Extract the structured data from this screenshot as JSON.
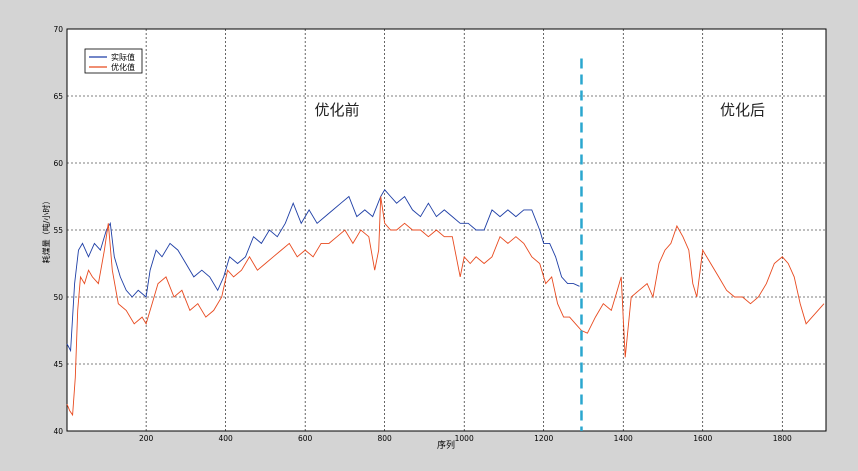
{
  "chart_data": {
    "type": "line",
    "title": "",
    "xlabel": "序列",
    "ylabel": "耗煤量（吨/小时）",
    "xlim": [
      1,
      1910
    ],
    "ylim": [
      40,
      70
    ],
    "xticks": [
      200,
      400,
      600,
      800,
      1000,
      1200,
      1400,
      1600,
      1800
    ],
    "yticks": [
      40,
      45,
      50,
      55,
      60,
      65,
      70
    ],
    "grid": true,
    "legend_position": "top-left",
    "divider": {
      "x": 1295,
      "color": "#2aa7cf",
      "style": "dashed"
    },
    "annotations": [
      {
        "text": "优化前",
        "x": 680,
        "y": 63.6
      },
      {
        "text": "优化后",
        "x": 1700,
        "y": 63.6
      }
    ],
    "series": [
      {
        "name": "实际值",
        "color": "#1f3fa6",
        "points": [
          [
            1,
            46.5
          ],
          [
            10,
            46
          ],
          [
            20,
            51
          ],
          [
            30,
            53.5
          ],
          [
            40,
            54
          ],
          [
            55,
            53
          ],
          [
            70,
            54
          ],
          [
            85,
            53.5
          ],
          [
            100,
            55
          ],
          [
            110,
            55.5
          ],
          [
            120,
            53
          ],
          [
            135,
            51.5
          ],
          [
            150,
            50.5
          ],
          [
            165,
            50
          ],
          [
            180,
            50.5
          ],
          [
            200,
            50
          ],
          [
            210,
            52
          ],
          [
            225,
            53.5
          ],
          [
            240,
            53
          ],
          [
            260,
            54
          ],
          [
            280,
            53.5
          ],
          [
            300,
            52.5
          ],
          [
            320,
            51.5
          ],
          [
            340,
            52
          ],
          [
            360,
            51.5
          ],
          [
            380,
            50.5
          ],
          [
            395,
            51.5
          ],
          [
            410,
            53
          ],
          [
            430,
            52.5
          ],
          [
            450,
            53
          ],
          [
            470,
            54.5
          ],
          [
            490,
            54
          ],
          [
            510,
            55
          ],
          [
            530,
            54.5
          ],
          [
            550,
            55.5
          ],
          [
            570,
            57
          ],
          [
            590,
            55.5
          ],
          [
            610,
            56.5
          ],
          [
            630,
            55.5
          ],
          [
            650,
            56
          ],
          [
            670,
            56.5
          ],
          [
            690,
            57
          ],
          [
            710,
            57.5
          ],
          [
            730,
            56
          ],
          [
            750,
            56.5
          ],
          [
            770,
            56
          ],
          [
            790,
            57.5
          ],
          [
            800,
            58
          ],
          [
            815,
            57.5
          ],
          [
            830,
            57
          ],
          [
            850,
            57.5
          ],
          [
            870,
            56.5
          ],
          [
            890,
            56
          ],
          [
            910,
            57
          ],
          [
            930,
            56
          ],
          [
            950,
            56.5
          ],
          [
            970,
            56
          ],
          [
            990,
            55.5
          ],
          [
            1010,
            55.5
          ],
          [
            1030,
            55
          ],
          [
            1050,
            55
          ],
          [
            1070,
            56.5
          ],
          [
            1090,
            56
          ],
          [
            1110,
            56.5
          ],
          [
            1130,
            56
          ],
          [
            1150,
            56.5
          ],
          [
            1170,
            56.5
          ],
          [
            1190,
            55
          ],
          [
            1200,
            54
          ],
          [
            1215,
            54
          ],
          [
            1230,
            53
          ],
          [
            1245,
            51.5
          ],
          [
            1260,
            51
          ],
          [
            1275,
            51
          ],
          [
            1290,
            50.8
          ]
        ]
      },
      {
        "name": "优化值",
        "color": "#e84a1f",
        "points": [
          [
            1,
            42
          ],
          [
            8,
            41.5
          ],
          [
            15,
            41.2
          ],
          [
            22,
            44
          ],
          [
            28,
            49
          ],
          [
            35,
            51.5
          ],
          [
            45,
            51
          ],
          [
            55,
            52
          ],
          [
            65,
            51.5
          ],
          [
            80,
            51
          ],
          [
            95,
            53.5
          ],
          [
            105,
            55.5
          ],
          [
            115,
            52
          ],
          [
            130,
            49.5
          ],
          [
            150,
            49
          ],
          [
            170,
            48
          ],
          [
            190,
            48.5
          ],
          [
            200,
            48
          ],
          [
            215,
            49.5
          ],
          [
            230,
            51
          ],
          [
            250,
            51.5
          ],
          [
            270,
            50
          ],
          [
            290,
            50.5
          ],
          [
            310,
            49
          ],
          [
            330,
            49.5
          ],
          [
            350,
            48.5
          ],
          [
            370,
            49
          ],
          [
            390,
            50
          ],
          [
            405,
            52
          ],
          [
            420,
            51.5
          ],
          [
            440,
            52
          ],
          [
            460,
            53
          ],
          [
            480,
            52
          ],
          [
            500,
            52.5
          ],
          [
            520,
            53
          ],
          [
            540,
            53.5
          ],
          [
            560,
            54
          ],
          [
            580,
            53
          ],
          [
            600,
            53.5
          ],
          [
            620,
            53
          ],
          [
            640,
            54
          ],
          [
            660,
            54
          ],
          [
            680,
            54.5
          ],
          [
            700,
            55
          ],
          [
            720,
            54
          ],
          [
            740,
            55
          ],
          [
            760,
            54.5
          ],
          [
            775,
            52
          ],
          [
            785,
            53.5
          ],
          [
            790,
            57.5
          ],
          [
            800,
            55.5
          ],
          [
            815,
            55
          ],
          [
            830,
            55
          ],
          [
            850,
            55.5
          ],
          [
            870,
            55
          ],
          [
            890,
            55
          ],
          [
            910,
            54.5
          ],
          [
            930,
            55
          ],
          [
            950,
            54.5
          ],
          [
            970,
            54.5
          ],
          [
            990,
            51.5
          ],
          [
            1000,
            53
          ],
          [
            1015,
            52.5
          ],
          [
            1030,
            53
          ],
          [
            1050,
            52.5
          ],
          [
            1070,
            53
          ],
          [
            1090,
            54.5
          ],
          [
            1110,
            54
          ],
          [
            1130,
            54.5
          ],
          [
            1150,
            54
          ],
          [
            1170,
            53
          ],
          [
            1190,
            52.5
          ],
          [
            1205,
            51
          ],
          [
            1220,
            51.5
          ],
          [
            1235,
            49.5
          ],
          [
            1250,
            48.5
          ],
          [
            1265,
            48.5
          ],
          [
            1280,
            48
          ],
          [
            1295,
            47.5
          ],
          [
            1310,
            47.3
          ],
          [
            1330,
            48.5
          ],
          [
            1350,
            49.5
          ],
          [
            1370,
            49
          ],
          [
            1385,
            50.5
          ],
          [
            1395,
            51.5
          ],
          [
            1405,
            45.5
          ],
          [
            1420,
            50
          ],
          [
            1440,
            50.5
          ],
          [
            1460,
            51
          ],
          [
            1475,
            50
          ],
          [
            1490,
            52.5
          ],
          [
            1505,
            53.5
          ],
          [
            1520,
            54
          ],
          [
            1535,
            55.3
          ],
          [
            1550,
            54.5
          ],
          [
            1565,
            53.5
          ],
          [
            1575,
            51
          ],
          [
            1585,
            50
          ],
          [
            1600,
            53.5
          ],
          [
            1620,
            52.5
          ],
          [
            1640,
            51.5
          ],
          [
            1660,
            50.5
          ],
          [
            1680,
            50
          ],
          [
            1700,
            50
          ],
          [
            1720,
            49.5
          ],
          [
            1740,
            50
          ],
          [
            1760,
            51
          ],
          [
            1780,
            52.5
          ],
          [
            1800,
            53
          ],
          [
            1815,
            52.5
          ],
          [
            1830,
            51.5
          ],
          [
            1845,
            49.5
          ],
          [
            1860,
            48
          ],
          [
            1875,
            48.5
          ],
          [
            1890,
            49
          ],
          [
            1905,
            49.5
          ]
        ]
      }
    ]
  }
}
